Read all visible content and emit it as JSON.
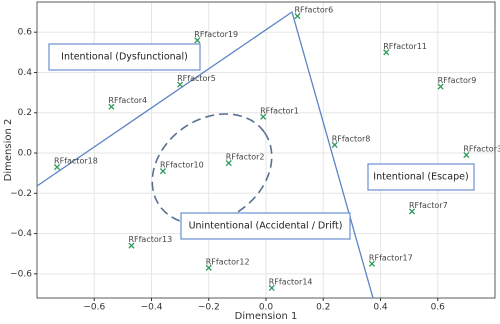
{
  "chart_data": {
    "type": "scatter",
    "x_label": "Dimension 1",
    "y_label": "Dimension 2",
    "xlim": [
      -0.8,
      0.8
    ],
    "ylim": [
      -0.72,
      0.75
    ],
    "xticks": [
      {
        "value": -0.6,
        "label": "−0.6"
      },
      {
        "value": -0.4,
        "label": "−0.4"
      },
      {
        "value": -0.2,
        "label": "−0.2"
      },
      {
        "value": 0,
        "label": "0.0"
      },
      {
        "value": 0.2,
        "label": "0.2"
      },
      {
        "value": 0.4,
        "label": "0.4"
      },
      {
        "value": 0.6,
        "label": "0.6"
      }
    ],
    "yticks": [
      {
        "value": -0.6,
        "label": "−0.6"
      },
      {
        "value": -0.4,
        "label": "−0.4"
      },
      {
        "value": -0.2,
        "label": "−0.2"
      },
      {
        "value": 0,
        "label": "0.0"
      },
      {
        "value": 0.2,
        "label": "0.2"
      },
      {
        "value": 0.4,
        "label": "0.4"
      },
      {
        "value": 0.6,
        "label": "0.6"
      }
    ],
    "grid": true,
    "color": "#2e9a5a",
    "labels": [
      "RFfactor6",
      "RFfactor19",
      "RFfactor11",
      "RFfactor5",
      "RFfactor9",
      "RFfactor4",
      "RFfactor1",
      "RFfactor8",
      "RFfactor3",
      "RFfactor18",
      "RFfactor2",
      "RFfactor10",
      "RFfactor7",
      "RFfactor13",
      "RFfactor12",
      "RFfactor17",
      "RFfactor14"
    ],
    "x": [
      0.11,
      -0.24,
      0.42,
      -0.3,
      0.61,
      -0.54,
      -0.01,
      0.24,
      0.7,
      -0.73,
      -0.13,
      -0.36,
      0.51,
      -0.47,
      -0.2,
      0.37,
      0.02
    ],
    "values": [
      0.68,
      0.56,
      0.5,
      0.34,
      0.33,
      0.23,
      0.18,
      0.04,
      -0.01,
      -0.07,
      -0.05,
      -0.09,
      -0.29,
      -0.46,
      -0.57,
      -0.55,
      -0.67
    ],
    "annotations": [
      "Intentional (Dysfunctional)",
      "Intentional (Escape)",
      "Unintentional (Accidental / Drift)"
    ]
  }
}
